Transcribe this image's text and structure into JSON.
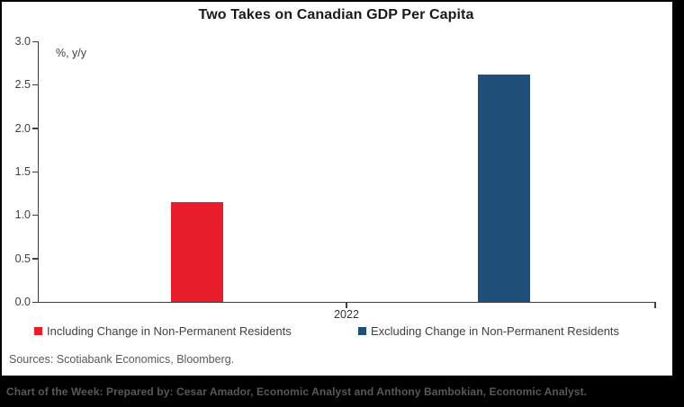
{
  "title": "Two Takes on Canadian GDP Per Capita",
  "sources_line": "Sources: Scotiabank Economics, Bloomberg.",
  "footer": {
    "text": "Chart of the Week: Prepared by: Cesar Amador, Economic Analyst and Anthony Bambokian, Economic Analyst.",
    "bg_color": "#000000",
    "text_color": "#585858"
  },
  "colors": {
    "including_red": "#e91c2c",
    "excluding_navy": "#1f4e79",
    "axis_gray": "#3f3f3f",
    "text_gray": "#404040"
  },
  "chart_data": {
    "type": "bar",
    "categories": [
      "2022"
    ],
    "series": [
      {
        "name": "Including Change in Non-Permanent Residents",
        "values": [
          1.15
        ],
        "color": "#e91c2c"
      },
      {
        "name": "Excluding Change in Non-Permanent Residents",
        "values": [
          2.62
        ],
        "color": "#1f4e79"
      }
    ],
    "title": "Two Takes on Canadian GDP Per Capita",
    "xlabel": "",
    "ylabel": "%, y/y",
    "ylim": [
      0.0,
      3.0
    ],
    "ytick_step": 0.5,
    "ytick_labels": [
      "3.0",
      "2.5",
      "2.0",
      "1.5",
      "1.0",
      "0.5",
      "0.0"
    ],
    "grid": false,
    "legend_position": "bottom"
  }
}
